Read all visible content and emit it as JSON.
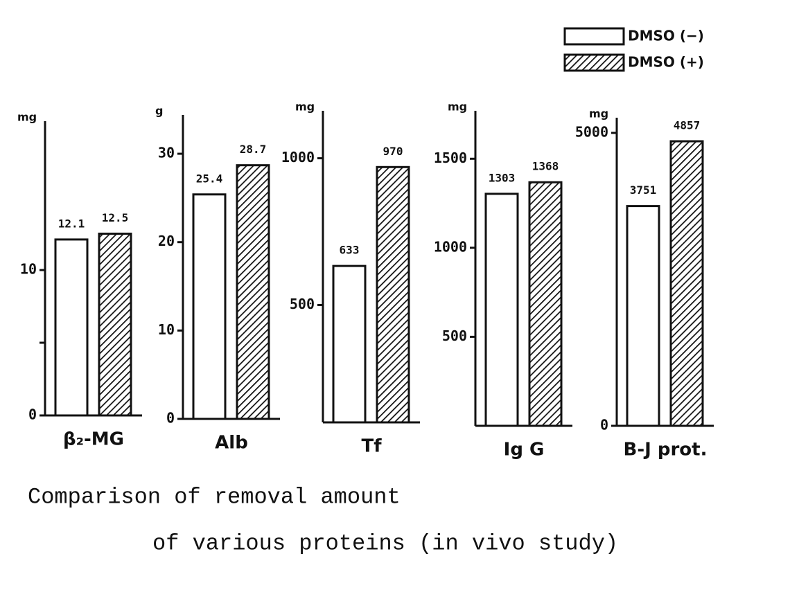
{
  "series_names": [
    "DMSO (−)",
    "DMSO (+)"
  ],
  "patterns": [
    "none",
    "hatch"
  ],
  "caption": [
    "Comparison of removal amount",
    "of various proteins (in vivo study)"
  ],
  "chart_data": [
    {
      "type": "bar",
      "unit": "mg",
      "xlabel": "β₂-MG",
      "values": [
        12.1,
        12.5
      ],
      "ylim": [
        0,
        20
      ],
      "yticks": [
        0,
        10
      ],
      "minor_yticks": [
        5
      ]
    },
    {
      "type": "bar",
      "unit": "g",
      "xlabel": "Alb",
      "values": [
        25.4,
        28.7
      ],
      "ylim": [
        0,
        34
      ],
      "yticks": [
        0,
        10,
        20,
        30
      ]
    },
    {
      "type": "bar",
      "unit": "mg",
      "xlabel": "Tf",
      "values": [
        633,
        970
      ],
      "ylim": [
        100,
        1150
      ],
      "yticks": [
        500,
        1000
      ]
    },
    {
      "type": "bar",
      "unit": "mg",
      "xlabel": "Ig G",
      "values": [
        1303,
        1368
      ],
      "ylim": [
        0,
        1750
      ],
      "yticks": [
        500,
        1000,
        1500
      ]
    },
    {
      "type": "bar",
      "unit": "mg",
      "xlabel": "B-J prot.",
      "values": [
        3751,
        4857
      ],
      "ylim": [
        0,
        5200
      ],
      "yticks": [
        0,
        5000
      ]
    }
  ]
}
